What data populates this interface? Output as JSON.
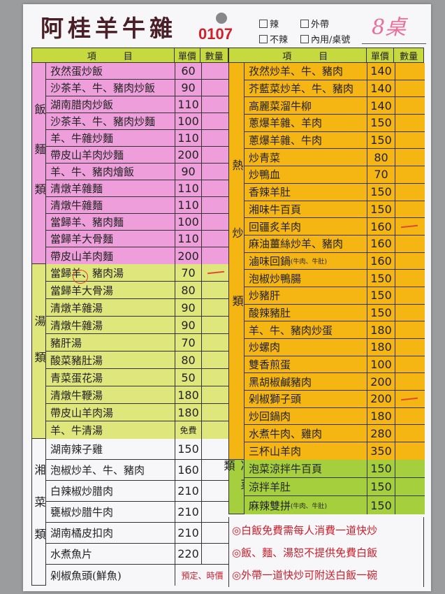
{
  "header": {
    "title": "阿桂羊牛雜",
    "order_no": "0107",
    "options": [
      "辣",
      "外帶",
      "不辣",
      "內用/桌號"
    ],
    "table_handwritten": "8桌"
  },
  "columns": {
    "item": "項　　　目",
    "price": "單價",
    "qty": "數量"
  },
  "colors": {
    "pink": "#ee9fdb",
    "yellow": "#dfe67c",
    "orange": "#f5b512",
    "green": "#a6cf3e",
    "header": "#c6d93e",
    "red_text": "#c8202c"
  },
  "left": [
    {
      "category": "飯麵類",
      "color": "#ee9fdb",
      "items": [
        {
          "name": "孜然蛋炒飯",
          "price": "60"
        },
        {
          "name": "沙茶羊、牛、豬肉炒飯",
          "price": "90"
        },
        {
          "name": "湖南腊肉炒飯",
          "price": "110"
        },
        {
          "name": "沙茶羊、牛、豬肉炒麵",
          "price": "100"
        },
        {
          "name": "羊、牛雜炒麵",
          "price": "110"
        },
        {
          "name": "帶皮山羊肉炒麵",
          "price": "200"
        },
        {
          "name": "羊、牛、豬肉燴飯",
          "price": "90"
        },
        {
          "name": "清燉羊雜麵",
          "price": "110"
        },
        {
          "name": "清燉牛雜麵",
          "price": "110"
        },
        {
          "name": "當歸羊、豬肉麵",
          "price": "100"
        },
        {
          "name": "當歸羊大骨麵",
          "price": "110"
        },
        {
          "name": "帶皮山羊肉麵",
          "price": "200"
        }
      ]
    },
    {
      "category": "湯類",
      "color": "#dfe67c",
      "items": [
        {
          "name": "當歸羊、豬肉湯",
          "price": "70",
          "marked": true
        },
        {
          "name": "當歸羊大骨湯",
          "price": "80"
        },
        {
          "name": "清燉羊雜湯",
          "price": "90"
        },
        {
          "name": "清燉牛雜湯",
          "price": "90"
        },
        {
          "name": "豬肝湯",
          "price": "70"
        },
        {
          "name": "酸菜豬肚湯",
          "price": "80"
        },
        {
          "name": "青菜蛋花湯",
          "price": "50"
        },
        {
          "name": "清燉牛鞭湯",
          "price": "180"
        },
        {
          "name": "帶皮山羊肉湯",
          "price": "180"
        },
        {
          "name": "羊、牛清湯",
          "price": "免費"
        }
      ]
    },
    {
      "category": "湘菜類",
      "color": "#f7f7fa",
      "items": [
        {
          "name": "湖南辣子雞",
          "price": "150"
        },
        {
          "name": "泡椒炒羊、牛、豬肉",
          "price": "160"
        },
        {
          "name": "白辣椒炒腊肉",
          "price": "210"
        },
        {
          "name": "甕椒炒腊牛肉",
          "price": "210"
        },
        {
          "name": "湖南橘皮扣肉",
          "price": "210"
        },
        {
          "name": "水煮魚片",
          "price": "220"
        },
        {
          "name": "剁椒魚頭(鮮魚)",
          "price": "預定、時價",
          "red": true
        }
      ]
    }
  ],
  "right": [
    {
      "category": "熱炒類",
      "color": "#f5b512",
      "items": [
        {
          "name": "孜然炒羊、牛、豬肉",
          "price": "140"
        },
        {
          "name": "芥藍菜炒羊、牛、豬肉",
          "price": "140"
        },
        {
          "name": "高麗菜溜牛柳",
          "price": "140"
        },
        {
          "name": "蔥爆羊雜、羊肉",
          "price": "150"
        },
        {
          "name": "蔥爆羊雜、牛肉",
          "price": "150"
        },
        {
          "name": "炒青菜",
          "price": "80"
        },
        {
          "name": "炒鴨血",
          "price": "70"
        },
        {
          "name": "香辣羊肚",
          "price": "150"
        },
        {
          "name": "湘味牛百頁",
          "price": "150"
        },
        {
          "name": "回疆炙羊肉",
          "price": "160",
          "marked": true
        },
        {
          "name": "麻油薑絲炒羊、豬肉",
          "price": "160"
        },
        {
          "name": "滷味回鍋",
          "note": "(牛肉、牛肚)",
          "price": "160"
        },
        {
          "name": "泡椒炒鴨腸",
          "price": "150"
        },
        {
          "name": "炒豬肝",
          "price": "150"
        },
        {
          "name": "酸辣豬肚",
          "price": "150"
        },
        {
          "name": "羊、牛、豬肉炒蛋",
          "price": "180"
        },
        {
          "name": "炒螺肉",
          "price": "180"
        },
        {
          "name": "雙香煎蛋",
          "price": "100"
        },
        {
          "name": "黑胡椒鹹豬肉",
          "price": "200"
        },
        {
          "name": "剁椒獅子頭",
          "price": "200",
          "marked": true
        },
        {
          "name": "炒回鍋肉",
          "price": "180"
        },
        {
          "name": "水煮牛肉、雞肉",
          "price": "280"
        },
        {
          "name": "三杯山羊肉",
          "price": "350"
        }
      ]
    },
    {
      "category": "冷菜類",
      "color": "#a6cf3e",
      "items": [
        {
          "name": "泡菜涼拌牛百頁",
          "price": "150"
        },
        {
          "name": "涼拌羊肚",
          "price": "150"
        },
        {
          "name": "麻辣雙拼",
          "note": "(牛肉、牛肚)",
          "price": "150"
        }
      ]
    }
  ],
  "notes": [
    "◎白飯免費需每人消費一道快炒",
    "◎飯、麵、湯恕不提供免費白飯",
    "◎外帶一道快炒可附送白飯一碗"
  ]
}
